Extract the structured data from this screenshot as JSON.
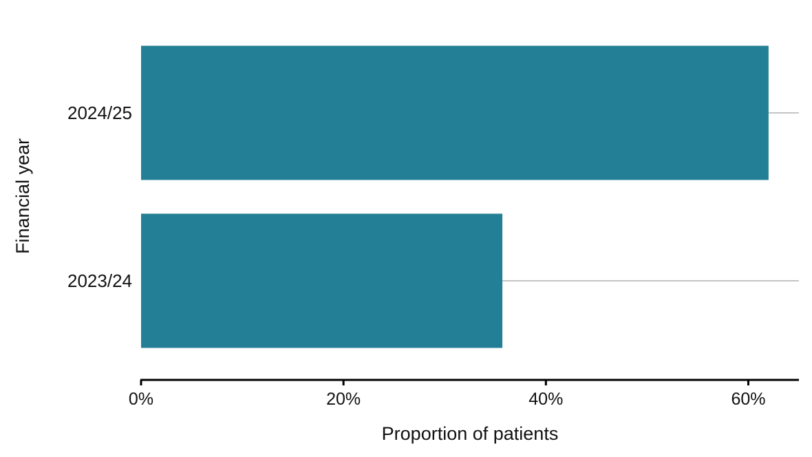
{
  "chart_data": {
    "type": "bar",
    "orientation": "horizontal",
    "categories": [
      "2024/25",
      "2023/24"
    ],
    "values": [
      62,
      35.7
    ],
    "xlabel": "Proportion of patients",
    "ylabel": "Financial year",
    "xlim": [
      0,
      65
    ],
    "xticks": [
      0,
      20,
      40,
      60
    ],
    "xtick_labels": [
      "0%",
      "20%",
      "40%",
      "60%"
    ],
    "bar_color": "#237f95",
    "reference_line_color": "#c4c4c4",
    "axis_color": "#000000",
    "grid": false
  }
}
